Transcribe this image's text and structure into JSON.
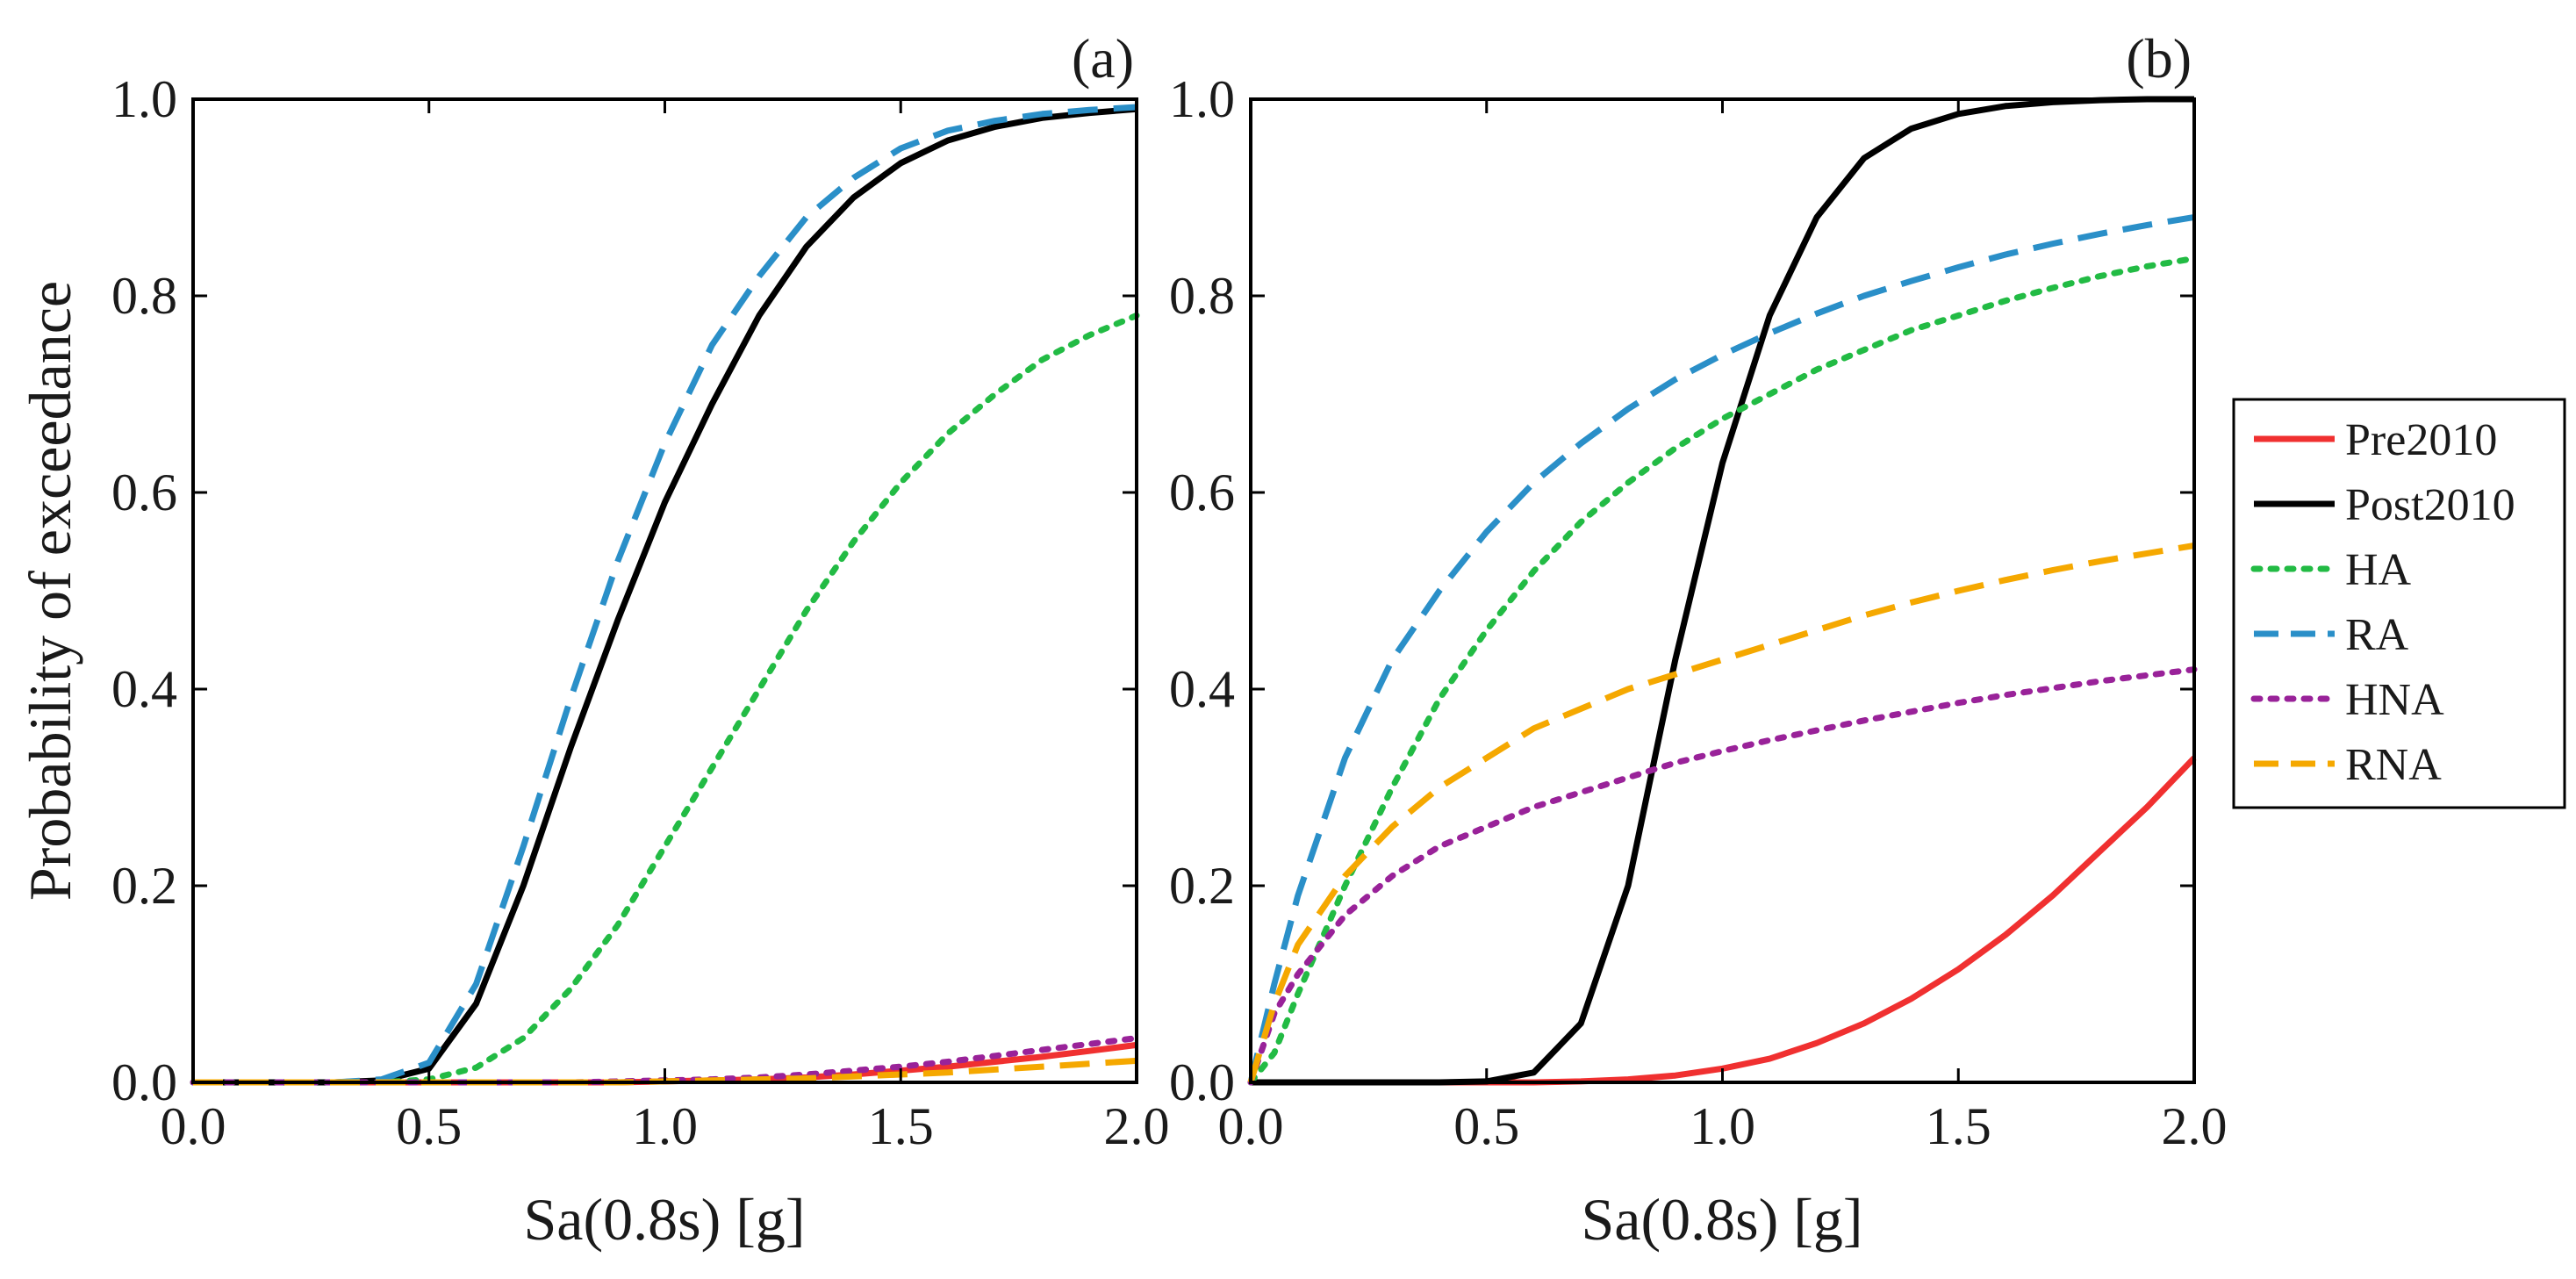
{
  "chart_data": [
    {
      "type": "line",
      "panel_label": "(a)",
      "xlabel": "Sa(0.8s) [g]",
      "ylabel": "Probability of exceedance",
      "xlim": [
        0,
        2
      ],
      "ylim": [
        0,
        1
      ],
      "xticks": [
        "0.0",
        "0.5",
        "1.0",
        "1.5",
        "2.0"
      ],
      "yticks": [
        "0.0",
        "0.2",
        "0.4",
        "0.6",
        "0.8",
        "1.0"
      ],
      "x": [
        0.0,
        0.1,
        0.2,
        0.3,
        0.4,
        0.5,
        0.6,
        0.7,
        0.8,
        0.9,
        1.0,
        1.1,
        1.2,
        1.3,
        1.4,
        1.5,
        1.6,
        1.7,
        1.8,
        1.9,
        2.0
      ],
      "series": [
        {
          "name": "Pre2010",
          "values": [
            0,
            0,
            0,
            0,
            0,
            0,
            0,
            0,
            0,
            0,
            0.001,
            0.002,
            0.003,
            0.005,
            0.008,
            0.012,
            0.016,
            0.021,
            0.026,
            0.032,
            0.038
          ]
        },
        {
          "name": "Post2010",
          "values": [
            0,
            0,
            0,
            0,
            0.002,
            0.014,
            0.08,
            0.2,
            0.34,
            0.47,
            0.59,
            0.69,
            0.78,
            0.85,
            0.9,
            0.935,
            0.958,
            0.972,
            0.981,
            0.986,
            0.99
          ]
        },
        {
          "name": "HA",
          "values": [
            0,
            0,
            0,
            0,
            0,
            0.003,
            0.015,
            0.045,
            0.095,
            0.16,
            0.24,
            0.32,
            0.4,
            0.48,
            0.55,
            0.61,
            0.66,
            0.7,
            0.735,
            0.76,
            0.78
          ]
        },
        {
          "name": "RA",
          "values": [
            0,
            0,
            0,
            0,
            0.003,
            0.02,
            0.1,
            0.24,
            0.39,
            0.53,
            0.65,
            0.75,
            0.82,
            0.88,
            0.92,
            0.95,
            0.968,
            0.978,
            0.985,
            0.989,
            0.992
          ]
        },
        {
          "name": "HNA",
          "values": [
            0,
            0,
            0,
            0,
            0,
            0,
            0,
            0,
            0,
            0.001,
            0.002,
            0.003,
            0.005,
            0.008,
            0.012,
            0.016,
            0.021,
            0.027,
            0.033,
            0.039,
            0.045
          ]
        },
        {
          "name": "RNA",
          "values": [
            0,
            0,
            0,
            0,
            0,
            0,
            0,
            0,
            0,
            0,
            0.001,
            0.002,
            0.003,
            0.004,
            0.006,
            0.008,
            0.01,
            0.013,
            0.016,
            0.019,
            0.022
          ]
        }
      ]
    },
    {
      "type": "line",
      "panel_label": "(b)",
      "xlabel": "Sa(0.8s) [g]",
      "ylabel": "",
      "xlim": [
        0,
        2
      ],
      "ylim": [
        0,
        1
      ],
      "xticks": [
        "0.0",
        "0.5",
        "1.0",
        "1.5",
        "2.0"
      ],
      "yticks": [
        "0.0",
        "0.2",
        "0.4",
        "0.6",
        "0.8",
        "1.0"
      ],
      "x": [
        0.0,
        0.05,
        0.1,
        0.2,
        0.3,
        0.4,
        0.5,
        0.6,
        0.7,
        0.8,
        0.9,
        1.0,
        1.1,
        1.2,
        1.3,
        1.4,
        1.5,
        1.6,
        1.7,
        1.8,
        1.9,
        2.0
      ],
      "series": [
        {
          "name": "Pre2010",
          "values": [
            0,
            0,
            0,
            0,
            0,
            0,
            0,
            0,
            0.001,
            0.003,
            0.007,
            0.014,
            0.024,
            0.04,
            0.06,
            0.085,
            0.115,
            0.15,
            0.19,
            0.235,
            0.28,
            0.33
          ]
        },
        {
          "name": "Post2010",
          "values": [
            0,
            0,
            0,
            0,
            0,
            0,
            0.001,
            0.01,
            0.06,
            0.2,
            0.43,
            0.63,
            0.78,
            0.88,
            0.94,
            0.97,
            0.985,
            0.993,
            0.997,
            0.999,
            1.0,
            1.0
          ]
        },
        {
          "name": "HA",
          "values": [
            0,
            0.03,
            0.09,
            0.2,
            0.3,
            0.39,
            0.46,
            0.52,
            0.57,
            0.61,
            0.645,
            0.675,
            0.7,
            0.725,
            0.745,
            0.765,
            0.78,
            0.795,
            0.808,
            0.82,
            0.83,
            0.838
          ]
        },
        {
          "name": "RA",
          "values": [
            0,
            0.1,
            0.19,
            0.33,
            0.43,
            0.5,
            0.56,
            0.61,
            0.65,
            0.685,
            0.715,
            0.74,
            0.762,
            0.782,
            0.8,
            0.815,
            0.829,
            0.842,
            0.853,
            0.863,
            0.872,
            0.88
          ]
        },
        {
          "name": "HNA",
          "values": [
            0,
            0.07,
            0.11,
            0.17,
            0.21,
            0.24,
            0.26,
            0.28,
            0.295,
            0.31,
            0.325,
            0.337,
            0.348,
            0.358,
            0.368,
            0.377,
            0.386,
            0.394,
            0.401,
            0.408,
            0.414,
            0.42
          ]
        },
        {
          "name": "RNA",
          "values": [
            0,
            0.08,
            0.14,
            0.21,
            0.26,
            0.3,
            0.33,
            0.36,
            0.38,
            0.4,
            0.415,
            0.43,
            0.445,
            0.46,
            0.475,
            0.488,
            0.5,
            0.511,
            0.521,
            0.53,
            0.538,
            0.546
          ]
        }
      ]
    }
  ],
  "legend": {
    "placement": "right",
    "entries": [
      "Pre2010",
      "Post2010",
      "HA",
      "RA",
      "HNA",
      "RNA"
    ]
  },
  "styles": {
    "Pre2010": {
      "color": "#f03030",
      "dash": "solid"
    },
    "Post2010": {
      "color": "#000000",
      "dash": "solid"
    },
    "HA": {
      "color": "#22bb44",
      "dash": "dot"
    },
    "RA": {
      "color": "#2a8fc8",
      "dash": "dash"
    },
    "HNA": {
      "color": "#992299",
      "dash": "dot"
    },
    "RNA": {
      "color": "#f5a800",
      "dash": "dash"
    }
  }
}
